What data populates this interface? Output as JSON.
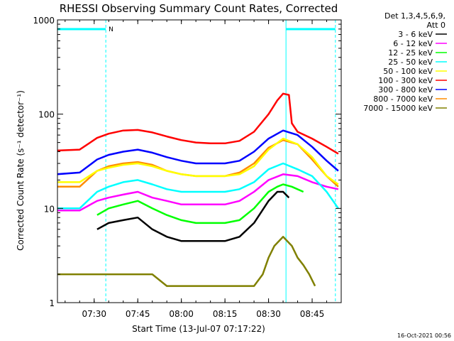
{
  "chart_data": {
    "type": "line",
    "title": "RHESSI Observing Summary Count Rates, Corrected",
    "xlabel": "Start Time (13-Jul-07 07:17:22)",
    "ylabel": "Corrected Count Rate (s⁻¹ detector⁻¹)",
    "y_scale": "log",
    "ylim": [
      1,
      1000
    ],
    "xlim": [
      "07:17:22",
      "08:55:00"
    ],
    "x_ticks": [
      "07:30",
      "07:45",
      "08:00",
      "08:15",
      "08:30",
      "08:45"
    ],
    "y_ticks": [
      "1",
      "10",
      "100",
      "1000"
    ],
    "legend_header": [
      "Det 1,3,4,5,6,9,",
      "Att 0"
    ],
    "legend_position": "right",
    "night_marker_label": "N",
    "footer_text": "16-Oct-2021 00:56",
    "series": [
      {
        "name": "3 - 6 keV",
        "color": "#000000",
        "x": [
          "07:31",
          "07:35",
          "07:40",
          "07:45",
          "07:50",
          "07:55",
          "08:00",
          "08:05",
          "08:10",
          "08:15",
          "08:20",
          "08:25",
          "08:30",
          "08:33",
          "08:35",
          "08:37"
        ],
        "y": [
          6,
          7,
          7.5,
          8,
          6,
          5,
          4.5,
          4.5,
          4.5,
          4.5,
          5,
          7,
          12,
          15,
          15,
          13
        ]
      },
      {
        "name": "6 - 12 keV",
        "color": "#ff00ff",
        "x": [
          "07:17",
          "07:25",
          "07:31",
          "07:35",
          "07:40",
          "07:45",
          "07:50",
          "07:55",
          "08:00",
          "08:05",
          "08:10",
          "08:15",
          "08:20",
          "08:25",
          "08:30",
          "08:35",
          "08:40",
          "08:45",
          "08:50",
          "08:54"
        ],
        "y": [
          9.5,
          9.5,
          12,
          13,
          14,
          15,
          13,
          12,
          11,
          11,
          11,
          11,
          12,
          15,
          20,
          23,
          22,
          19,
          17,
          16
        ]
      },
      {
        "name": "12 - 25 keV",
        "color": "#00ff00",
        "x": [
          "07:31",
          "07:35",
          "07:40",
          "07:45",
          "07:50",
          "07:55",
          "08:00",
          "08:05",
          "08:10",
          "08:15",
          "08:20",
          "08:25",
          "08:30",
          "08:33",
          "08:35",
          "08:38",
          "08:42"
        ],
        "y": [
          8.5,
          10,
          11,
          12,
          10,
          8.5,
          7.5,
          7,
          7,
          7,
          7.5,
          10,
          15,
          17,
          18,
          17,
          15
        ]
      },
      {
        "name": "25 - 50 keV",
        "color": "#00ffff",
        "x": [
          "07:17",
          "07:25",
          "07:31",
          "07:35",
          "07:40",
          "07:45",
          "07:50",
          "07:55",
          "08:00",
          "08:05",
          "08:10",
          "08:15",
          "08:20",
          "08:25",
          "08:30",
          "08:35",
          "08:40",
          "08:45",
          "08:50",
          "08:54"
        ],
        "y": [
          10,
          10,
          15,
          17,
          19,
          20,
          18,
          16,
          15,
          15,
          15,
          15,
          16,
          19,
          26,
          30,
          26,
          22,
          15,
          10
        ]
      },
      {
        "name": "50 - 100 keV",
        "color": "#ffff00",
        "x": [
          "07:17",
          "07:25",
          "07:31",
          "07:35",
          "07:40",
          "07:45",
          "07:50",
          "07:55",
          "08:00",
          "08:05",
          "08:10",
          "08:15",
          "08:20",
          "08:25",
          "08:30",
          "08:35",
          "08:40",
          "08:45",
          "08:50",
          "08:54"
        ],
        "y": [
          19,
          19,
          25,
          27,
          29,
          30,
          28,
          25,
          23,
          22,
          22,
          22,
          23,
          28,
          42,
          55,
          48,
          35,
          22,
          18
        ]
      },
      {
        "name": "100 - 300 keV",
        "color": "#ff0000",
        "x": [
          "07:17",
          "07:25",
          "07:31",
          "07:35",
          "07:40",
          "07:45",
          "07:50",
          "07:55",
          "08:00",
          "08:05",
          "08:10",
          "08:15",
          "08:20",
          "08:25",
          "08:30",
          "08:33",
          "08:35",
          "08:37",
          "08:38",
          "08:40",
          "08:45",
          "08:50",
          "08:54"
        ],
        "y": [
          41,
          42,
          56,
          62,
          67,
          68,
          64,
          58,
          53,
          50,
          49,
          49,
          52,
          65,
          100,
          140,
          165,
          160,
          80,
          65,
          55,
          45,
          38
        ]
      },
      {
        "name": "300 - 800 keV",
        "color": "#0000ff",
        "x": [
          "07:17",
          "07:25",
          "07:31",
          "07:35",
          "07:40",
          "07:45",
          "07:50",
          "07:55",
          "08:00",
          "08:05",
          "08:10",
          "08:15",
          "08:20",
          "08:25",
          "08:30",
          "08:35",
          "08:40",
          "08:45",
          "08:50",
          "08:54"
        ],
        "y": [
          23,
          24,
          33,
          37,
          40,
          42,
          39,
          35,
          32,
          30,
          30,
          30,
          32,
          40,
          55,
          67,
          60,
          45,
          32,
          25
        ]
      },
      {
        "name": "800 - 7000 keV",
        "color": "#ff8c00",
        "x": [
          "07:17",
          "07:25",
          "07:31",
          "07:35",
          "07:40",
          "07:45",
          "07:50",
          "07:55",
          "08:00",
          "08:05",
          "08:10",
          "08:15",
          "08:20",
          "08:25",
          "08:30",
          "08:35",
          "08:40",
          "08:45",
          "08:50",
          "08:54"
        ],
        "y": [
          17,
          17,
          25,
          28,
          30,
          31,
          29,
          25,
          23,
          22,
          22,
          22,
          24,
          30,
          44,
          53,
          48,
          33,
          22,
          17
        ]
      },
      {
        "name": "7000 - 15000 keV",
        "color": "#808000",
        "x": [
          "07:17",
          "07:20",
          "07:25",
          "07:30",
          "07:35",
          "07:40",
          "07:45",
          "07:50",
          "07:55",
          "08:00",
          "08:05",
          "08:10",
          "08:15",
          "08:20",
          "08:25",
          "08:28",
          "08:30",
          "08:32",
          "08:35",
          "08:38",
          "08:40",
          "08:42",
          "08:44",
          "08:46"
        ],
        "y": [
          2,
          2,
          2,
          2,
          2,
          2,
          2,
          2,
          1.5,
          1.5,
          1.5,
          1.5,
          1.5,
          1.5,
          1.5,
          2,
          3,
          4,
          5,
          4,
          3,
          2.5,
          2,
          1.5
        ]
      }
    ],
    "vertical_markers": [
      {
        "x": "07:17:22",
        "color": "#00ffff",
        "style": "solid"
      },
      {
        "x": "07:34",
        "color": "#00ffff",
        "style": "dashed"
      },
      {
        "x": "08:36",
        "color": "#00ffff",
        "style": "solid"
      },
      {
        "x": "08:53",
        "color": "#00ffff",
        "style": "dashed"
      }
    ]
  }
}
